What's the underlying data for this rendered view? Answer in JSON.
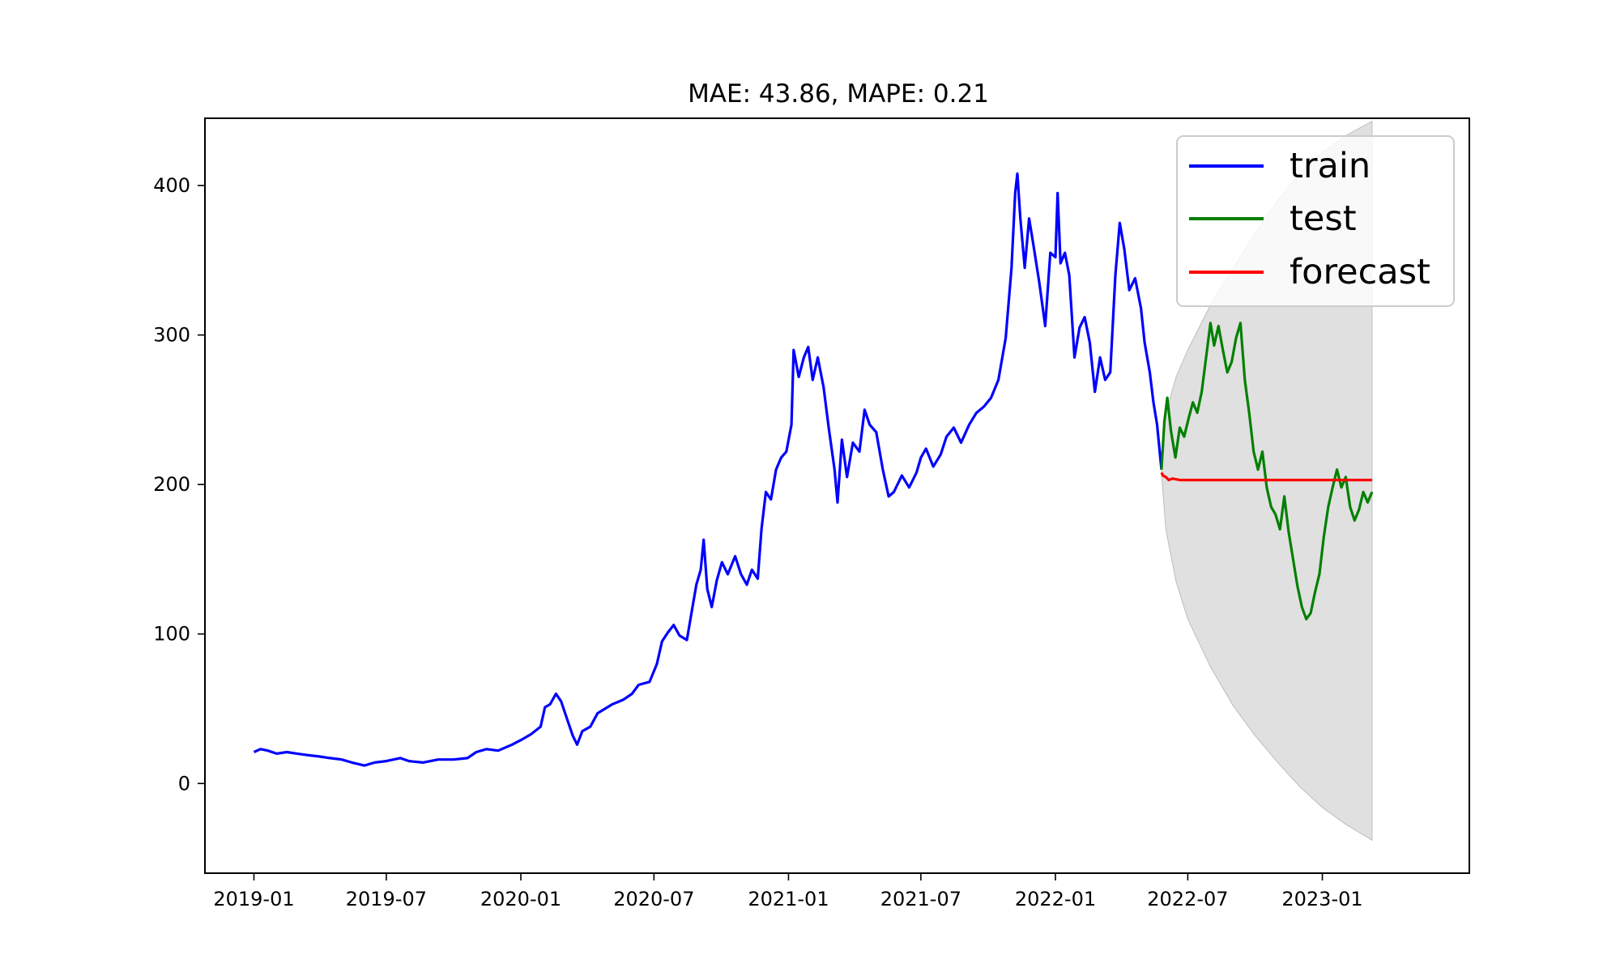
{
  "chart_data": {
    "type": "line",
    "title": "MAE: 43.86, MAPE: 0.21",
    "xlabel": "",
    "ylabel": "",
    "xlim": [
      "2018-10-26",
      "2023-07-21"
    ],
    "ylim": [
      -60,
      445
    ],
    "x_ticks": [
      "2019-01",
      "2019-07",
      "2020-01",
      "2020-07",
      "2021-01",
      "2021-07",
      "2022-01",
      "2022-07",
      "2023-01"
    ],
    "y_ticks": [
      0,
      100,
      200,
      300,
      400
    ],
    "grid": false,
    "legend_position": "top-right",
    "series": [
      {
        "name": "train",
        "color": "#0000ff",
        "points": [
          [
            "2019-01-01",
            21
          ],
          [
            "2019-01-10",
            23
          ],
          [
            "2019-01-20",
            22
          ],
          [
            "2019-02-01",
            20
          ],
          [
            "2019-02-15",
            21
          ],
          [
            "2019-03-01",
            20
          ],
          [
            "2019-03-15",
            19
          ],
          [
            "2019-04-01",
            18
          ],
          [
            "2019-04-15",
            17
          ],
          [
            "2019-05-01",
            16
          ],
          [
            "2019-05-15",
            14
          ],
          [
            "2019-06-01",
            12
          ],
          [
            "2019-06-15",
            14
          ],
          [
            "2019-07-01",
            15
          ],
          [
            "2019-07-20",
            17
          ],
          [
            "2019-08-01",
            15
          ],
          [
            "2019-08-20",
            14
          ],
          [
            "2019-09-10",
            16
          ],
          [
            "2019-10-01",
            16
          ],
          [
            "2019-10-20",
            17
          ],
          [
            "2019-11-01",
            21
          ],
          [
            "2019-11-15",
            23
          ],
          [
            "2019-12-01",
            22
          ],
          [
            "2019-12-20",
            26
          ],
          [
            "2020-01-01",
            29
          ],
          [
            "2020-01-15",
            33
          ],
          [
            "2020-01-28",
            38
          ],
          [
            "2020-02-03",
            51
          ],
          [
            "2020-02-10",
            53
          ],
          [
            "2020-02-18",
            60
          ],
          [
            "2020-02-25",
            55
          ],
          [
            "2020-03-05",
            42
          ],
          [
            "2020-03-12",
            32
          ],
          [
            "2020-03-18",
            26
          ],
          [
            "2020-03-25",
            35
          ],
          [
            "2020-04-05",
            38
          ],
          [
            "2020-04-15",
            47
          ],
          [
            "2020-04-25",
            50
          ],
          [
            "2020-05-05",
            53
          ],
          [
            "2020-05-20",
            56
          ],
          [
            "2020-06-01",
            60
          ],
          [
            "2020-06-10",
            66
          ],
          [
            "2020-06-25",
            68
          ],
          [
            "2020-07-05",
            80
          ],
          [
            "2020-07-12",
            95
          ],
          [
            "2020-07-20",
            101
          ],
          [
            "2020-07-28",
            106
          ],
          [
            "2020-08-05",
            99
          ],
          [
            "2020-08-15",
            96
          ],
          [
            "2020-08-22",
            116
          ],
          [
            "2020-08-28",
            133
          ],
          [
            "2020-09-03",
            143
          ],
          [
            "2020-09-07",
            163
          ],
          [
            "2020-09-12",
            130
          ],
          [
            "2020-09-18",
            118
          ],
          [
            "2020-09-25",
            136
          ],
          [
            "2020-10-02",
            148
          ],
          [
            "2020-10-10",
            140
          ],
          [
            "2020-10-20",
            152
          ],
          [
            "2020-10-28",
            140
          ],
          [
            "2020-11-05",
            133
          ],
          [
            "2020-11-12",
            143
          ],
          [
            "2020-11-20",
            137
          ],
          [
            "2020-11-25",
            170
          ],
          [
            "2020-12-01",
            195
          ],
          [
            "2020-12-08",
            190
          ],
          [
            "2020-12-15",
            210
          ],
          [
            "2020-12-22",
            218
          ],
          [
            "2020-12-29",
            222
          ],
          [
            "2021-01-05",
            240
          ],
          [
            "2021-01-08",
            290
          ],
          [
            "2021-01-15",
            272
          ],
          [
            "2021-01-22",
            285
          ],
          [
            "2021-01-28",
            292
          ],
          [
            "2021-02-03",
            270
          ],
          [
            "2021-02-10",
            285
          ],
          [
            "2021-02-18",
            265
          ],
          [
            "2021-02-25",
            238
          ],
          [
            "2021-03-05",
            210
          ],
          [
            "2021-03-09",
            188
          ],
          [
            "2021-03-15",
            230
          ],
          [
            "2021-03-22",
            205
          ],
          [
            "2021-03-30",
            228
          ],
          [
            "2021-04-08",
            222
          ],
          [
            "2021-04-15",
            250
          ],
          [
            "2021-04-22",
            240
          ],
          [
            "2021-05-01",
            235
          ],
          [
            "2021-05-10",
            210
          ],
          [
            "2021-05-18",
            192
          ],
          [
            "2021-05-25",
            195
          ],
          [
            "2021-06-05",
            206
          ],
          [
            "2021-06-15",
            198
          ],
          [
            "2021-06-25",
            208
          ],
          [
            "2021-07-01",
            218
          ],
          [
            "2021-07-08",
            224
          ],
          [
            "2021-07-18",
            212
          ],
          [
            "2021-07-28",
            220
          ],
          [
            "2021-08-05",
            232
          ],
          [
            "2021-08-15",
            238
          ],
          [
            "2021-08-25",
            228
          ],
          [
            "2021-09-05",
            240
          ],
          [
            "2021-09-15",
            248
          ],
          [
            "2021-09-25",
            252
          ],
          [
            "2021-10-05",
            258
          ],
          [
            "2021-10-15",
            270
          ],
          [
            "2021-10-25",
            298
          ],
          [
            "2021-11-02",
            345
          ],
          [
            "2021-11-07",
            395
          ],
          [
            "2021-11-10",
            408
          ],
          [
            "2021-11-14",
            378
          ],
          [
            "2021-11-20",
            345
          ],
          [
            "2021-11-26",
            378
          ],
          [
            "2021-12-02",
            360
          ],
          [
            "2021-12-10",
            335
          ],
          [
            "2021-12-18",
            306
          ],
          [
            "2021-12-25",
            355
          ],
          [
            "2022-01-01",
            352
          ],
          [
            "2022-01-04",
            395
          ],
          [
            "2022-01-08",
            348
          ],
          [
            "2022-01-14",
            355
          ],
          [
            "2022-01-20",
            340
          ],
          [
            "2022-01-27",
            285
          ],
          [
            "2022-02-03",
            305
          ],
          [
            "2022-02-10",
            312
          ],
          [
            "2022-02-17",
            295
          ],
          [
            "2022-02-24",
            262
          ],
          [
            "2022-03-03",
            285
          ],
          [
            "2022-03-10",
            270
          ],
          [
            "2022-03-17",
            275
          ],
          [
            "2022-03-24",
            340
          ],
          [
            "2022-03-30",
            375
          ],
          [
            "2022-04-05",
            358
          ],
          [
            "2022-04-12",
            330
          ],
          [
            "2022-04-20",
            338
          ],
          [
            "2022-04-28",
            318
          ],
          [
            "2022-05-03",
            295
          ],
          [
            "2022-05-10",
            275
          ],
          [
            "2022-05-15",
            255
          ],
          [
            "2022-05-20",
            240
          ],
          [
            "2022-05-26",
            210
          ]
        ]
      },
      {
        "name": "test",
        "color": "#008000",
        "points": [
          [
            "2022-05-26",
            210
          ],
          [
            "2022-05-30",
            242
          ],
          [
            "2022-06-03",
            258
          ],
          [
            "2022-06-08",
            236
          ],
          [
            "2022-06-14",
            218
          ],
          [
            "2022-06-20",
            238
          ],
          [
            "2022-06-26",
            232
          ],
          [
            "2022-07-02",
            244
          ],
          [
            "2022-07-08",
            255
          ],
          [
            "2022-07-14",
            248
          ],
          [
            "2022-07-20",
            262
          ],
          [
            "2022-07-26",
            285
          ],
          [
            "2022-08-01",
            308
          ],
          [
            "2022-08-06",
            293
          ],
          [
            "2022-08-12",
            306
          ],
          [
            "2022-08-18",
            290
          ],
          [
            "2022-08-24",
            275
          ],
          [
            "2022-08-30",
            282
          ],
          [
            "2022-09-05",
            298
          ],
          [
            "2022-09-11",
            308
          ],
          [
            "2022-09-17",
            270
          ],
          [
            "2022-09-23",
            248
          ],
          [
            "2022-09-29",
            222
          ],
          [
            "2022-10-05",
            210
          ],
          [
            "2022-10-11",
            222
          ],
          [
            "2022-10-17",
            198
          ],
          [
            "2022-10-23",
            185
          ],
          [
            "2022-10-29",
            180
          ],
          [
            "2022-11-04",
            170
          ],
          [
            "2022-11-10",
            192
          ],
          [
            "2022-11-16",
            168
          ],
          [
            "2022-11-22",
            150
          ],
          [
            "2022-11-28",
            132
          ],
          [
            "2022-12-04",
            118
          ],
          [
            "2022-12-10",
            110
          ],
          [
            "2022-12-16",
            114
          ],
          [
            "2022-12-22",
            128
          ],
          [
            "2022-12-28",
            140
          ],
          [
            "2023-01-03",
            165
          ],
          [
            "2023-01-09",
            185
          ],
          [
            "2023-01-15",
            198
          ],
          [
            "2023-01-21",
            210
          ],
          [
            "2023-01-27",
            198
          ],
          [
            "2023-02-02",
            205
          ],
          [
            "2023-02-08",
            185
          ],
          [
            "2023-02-14",
            176
          ],
          [
            "2023-02-20",
            183
          ],
          [
            "2023-02-26",
            195
          ],
          [
            "2023-03-04",
            188
          ],
          [
            "2023-03-10",
            195
          ]
        ]
      },
      {
        "name": "forecast",
        "color": "#ff0000",
        "points": [
          [
            "2022-05-26",
            208
          ],
          [
            "2022-05-28",
            206
          ],
          [
            "2022-06-01",
            205
          ],
          [
            "2022-06-05",
            203
          ],
          [
            "2022-06-10",
            204
          ],
          [
            "2022-06-20",
            203
          ],
          [
            "2022-07-05",
            203
          ],
          [
            "2022-08-01",
            203
          ],
          [
            "2022-10-01",
            203
          ],
          [
            "2023-01-01",
            203
          ],
          [
            "2023-03-10",
            203
          ]
        ]
      }
    ],
    "confidence_band": {
      "color": "#d3d3d3",
      "points": [
        [
          "2022-05-26",
          208,
          208
        ],
        [
          "2022-06-01",
          170,
          248
        ],
        [
          "2022-06-15",
          135,
          272
        ],
        [
          "2022-07-01",
          110,
          290
        ],
        [
          "2022-08-01",
          78,
          320
        ],
        [
          "2022-09-01",
          52,
          345
        ],
        [
          "2022-10-01",
          32,
          368
        ],
        [
          "2022-11-01",
          14,
          390
        ],
        [
          "2022-12-01",
          -2,
          408
        ],
        [
          "2023-01-01",
          -16,
          422
        ],
        [
          "2023-02-01",
          -27,
          433
        ],
        [
          "2023-03-10",
          -38,
          443
        ]
      ]
    }
  }
}
